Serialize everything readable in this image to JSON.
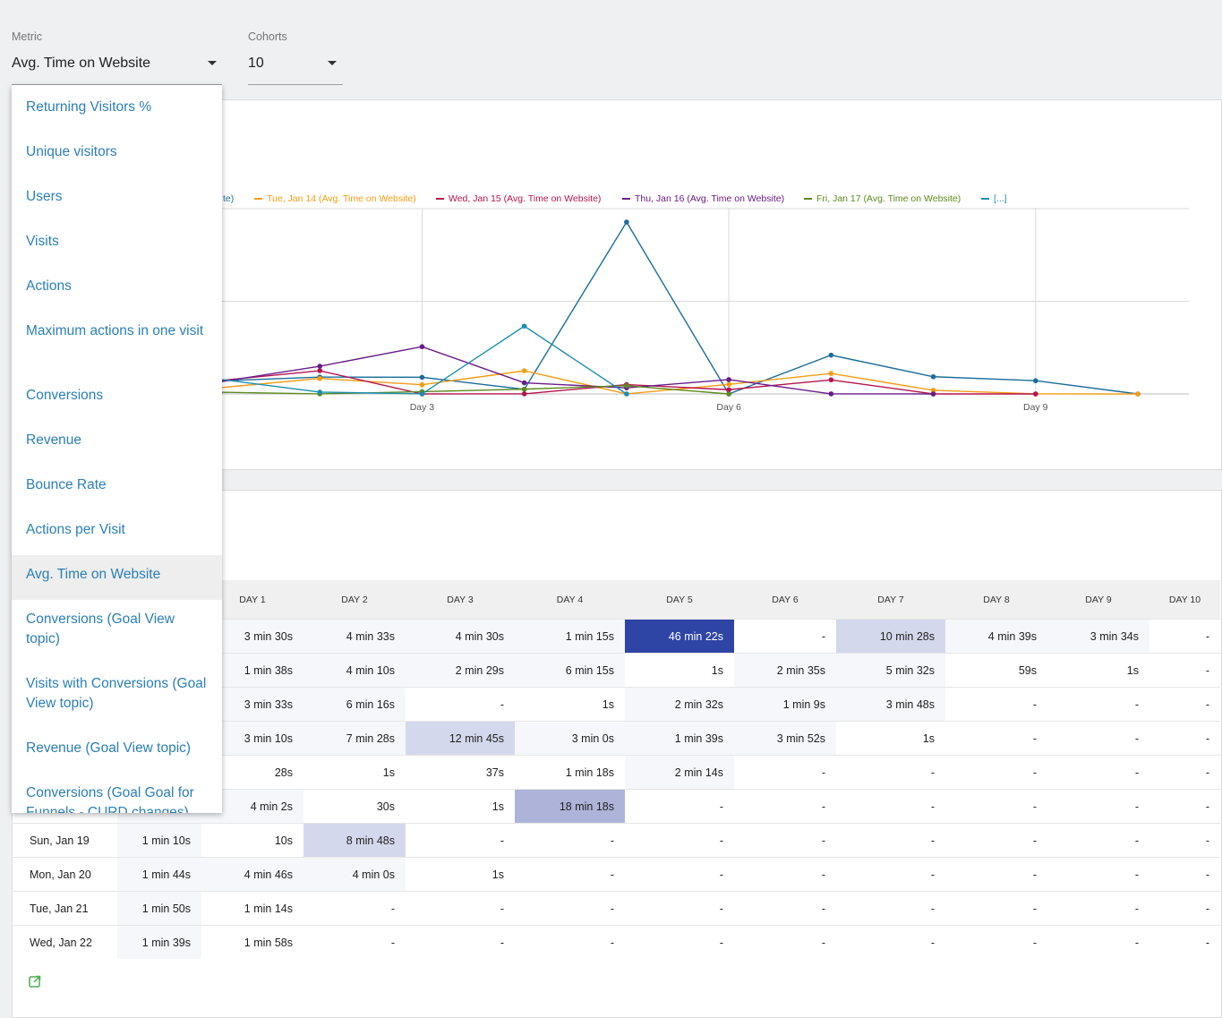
{
  "controls": {
    "metric": {
      "label": "Metric",
      "value": "Avg. Time on Website"
    },
    "cohorts": {
      "label": "Cohorts",
      "value": "10"
    }
  },
  "dropdown": {
    "options": [
      "Returning Visitors %",
      "Unique visitors",
      "Users",
      "Visits",
      "Actions",
      "Maximum actions in one visit",
      "Conversions",
      "Revenue",
      "Bounce Rate",
      "Actions per Visit",
      "Avg. Time on Website",
      "Conversions (Goal View topic)",
      "Visits with Conversions (Goal View topic)",
      "Revenue (Goal View topic)",
      "Conversions (Goal Goal for Funnels - CURD changes)"
    ],
    "selected": "Avg. Time on Website"
  },
  "chart_data": {
    "type": "line",
    "legend_visible": [
      {
        "label": "te)",
        "color": "#1a6f9a"
      },
      {
        "label": "Tue, Jan 14 (Avg. Time on Website)",
        "color": "#f39c12"
      },
      {
        "label": "Wed, Jan 15 (Avg. Time on Website)",
        "color": "#b5144e"
      },
      {
        "label": "Thu, Jan 16 (Avg. Time on Website)",
        "color": "#6a1b8a"
      },
      {
        "label": "Fri, Jan 17 (Avg. Time on Website)",
        "color": "#5d8a1e"
      },
      {
        "label": "[...]",
        "color": "#1a8fb3"
      }
    ],
    "x_tick_labels": [
      "Day 3",
      "Day 6",
      "Day 9"
    ],
    "x_range": [
      1,
      10
    ],
    "y_range": [
      0,
      50
    ],
    "grid": true,
    "legend_position": "top",
    "series": [
      {
        "color": "#1a6f9a",
        "x": [
          1,
          2,
          3,
          4,
          5,
          6,
          7,
          8,
          9,
          10
        ],
        "values": [
          3.5,
          4.55,
          4.5,
          1.25,
          46.37,
          0,
          10.47,
          4.65,
          3.57,
          0
        ]
      },
      {
        "color": "#f39c12",
        "x": [
          1,
          2,
          3,
          4,
          5,
          6,
          7,
          8,
          9,
          10
        ],
        "values": [
          1.63,
          4.17,
          2.48,
          6.25,
          0.02,
          2.58,
          5.53,
          0.98,
          0.02,
          0
        ]
      },
      {
        "color": "#b5144e",
        "x": [
          1,
          2,
          3,
          4,
          5,
          6,
          7,
          8,
          9
        ],
        "values": [
          3.55,
          6.27,
          0,
          0.02,
          2.53,
          1.15,
          3.8,
          0,
          0
        ]
      },
      {
        "color": "#6a1b8a",
        "x": [
          1,
          2,
          3,
          4,
          5,
          6,
          7,
          8
        ],
        "values": [
          3.17,
          7.47,
          12.75,
          3.0,
          1.65,
          3.87,
          0.02,
          0
        ]
      },
      {
        "color": "#5d8a1e",
        "x": [
          1,
          2,
          3,
          4,
          5,
          6
        ],
        "values": [
          0.47,
          0.02,
          0.62,
          1.3,
          2.23,
          0
        ]
      },
      {
        "color": "#1a8fb3",
        "x": [
          1,
          2,
          3,
          4,
          5
        ],
        "values": [
          4.03,
          0.5,
          0.02,
          18.3,
          0
        ]
      }
    ]
  },
  "table": {
    "columns": [
      "DAY 1",
      "DAY 2",
      "DAY 3",
      "DAY 4",
      "DAY 5",
      "DAY 6",
      "DAY 7",
      "DAY 8",
      "DAY 9",
      "DAY 10"
    ],
    "rows": [
      {
        "label": "",
        "day0": "",
        "cells": [
          "3 min 30s",
          "4 min 33s",
          "4 min 30s",
          "1 min 15s",
          "46 min 22s",
          "-",
          "10 min 28s",
          "4 min 39s",
          "3 min 34s",
          "-"
        ],
        "shade": [
          1,
          1,
          1,
          1,
          5,
          0,
          2,
          1,
          1,
          0
        ]
      },
      {
        "label": "",
        "day0": "",
        "cells": [
          "1 min 38s",
          "4 min 10s",
          "2 min 29s",
          "6 min 15s",
          "1s",
          "2 min 35s",
          "5 min 32s",
          "59s",
          "1s",
          "-"
        ],
        "shade": [
          1,
          1,
          1,
          1,
          0,
          1,
          1,
          0,
          0,
          0
        ]
      },
      {
        "label": "",
        "day0": "",
        "cells": [
          "3 min 33s",
          "6 min 16s",
          "-",
          "1s",
          "2 min 32s",
          "1 min 9s",
          "3 min 48s",
          "-",
          "-",
          "-"
        ],
        "shade": [
          1,
          1,
          0,
          0,
          1,
          1,
          1,
          0,
          0,
          0
        ]
      },
      {
        "label": "",
        "day0": "",
        "cells": [
          "3 min 10s",
          "7 min 28s",
          "12 min 45s",
          "3 min 0s",
          "1 min 39s",
          "3 min 52s",
          "1s",
          "-",
          "-",
          "-"
        ],
        "shade": [
          1,
          1,
          2,
          1,
          1,
          1,
          0,
          0,
          0,
          0
        ]
      },
      {
        "label": "",
        "day0": "",
        "cells": [
          "28s",
          "1s",
          "37s",
          "1 min 18s",
          "2 min 14s",
          "-",
          "-",
          "-",
          "-",
          "-"
        ],
        "shade": [
          0,
          0,
          0,
          0,
          1,
          0,
          0,
          0,
          0,
          0
        ]
      },
      {
        "label": "",
        "day0": "",
        "cells": [
          "4 min 2s",
          "30s",
          "1s",
          "18 min 18s",
          "-",
          "-",
          "-",
          "-",
          "-",
          "-"
        ],
        "shade": [
          1,
          0,
          0,
          3,
          0,
          0,
          0,
          0,
          0,
          0
        ]
      },
      {
        "label": "Sun, Jan 19",
        "day0": "1 min 10s",
        "cells": [
          "10s",
          "8 min 48s",
          "-",
          "-",
          "-",
          "-",
          "-",
          "-",
          "-",
          "-"
        ],
        "shade": [
          0,
          2,
          0,
          0,
          0,
          0,
          0,
          0,
          0,
          0
        ]
      },
      {
        "label": "Mon, Jan 20",
        "day0": "1 min 44s",
        "cells": [
          "4 min 46s",
          "4 min 0s",
          "1s",
          "-",
          "-",
          "-",
          "-",
          "-",
          "-",
          "-"
        ],
        "shade": [
          1,
          1,
          0,
          0,
          0,
          0,
          0,
          0,
          0,
          0
        ]
      },
      {
        "label": "Tue, Jan 21",
        "day0": "1 min 50s",
        "cells": [
          "1 min 14s",
          "-",
          "-",
          "-",
          "-",
          "-",
          "-",
          "-",
          "-",
          "-"
        ],
        "shade": [
          0,
          0,
          0,
          0,
          0,
          0,
          0,
          0,
          0,
          0
        ]
      },
      {
        "label": "Wed, Jan 22",
        "day0": "1 min 39s",
        "cells": [
          "1 min 58s",
          "-",
          "-",
          "-",
          "-",
          "-",
          "-",
          "-",
          "-",
          "-"
        ],
        "shade": [
          0,
          0,
          0,
          0,
          0,
          0,
          0,
          0,
          0,
          0
        ]
      }
    ]
  },
  "colors": {
    "accent": "#2a7fb8",
    "heat": [
      "#ffffff",
      "#f5f7fb",
      "#d4d8ec",
      "#aeb4d9",
      "#6f7cc0",
      "#2f45a6"
    ],
    "export_icon": "#4caf50"
  },
  "icons": {
    "metric_caret": "caret-down-icon",
    "cohorts_caret": "caret-down-icon",
    "export": "export-icon"
  }
}
